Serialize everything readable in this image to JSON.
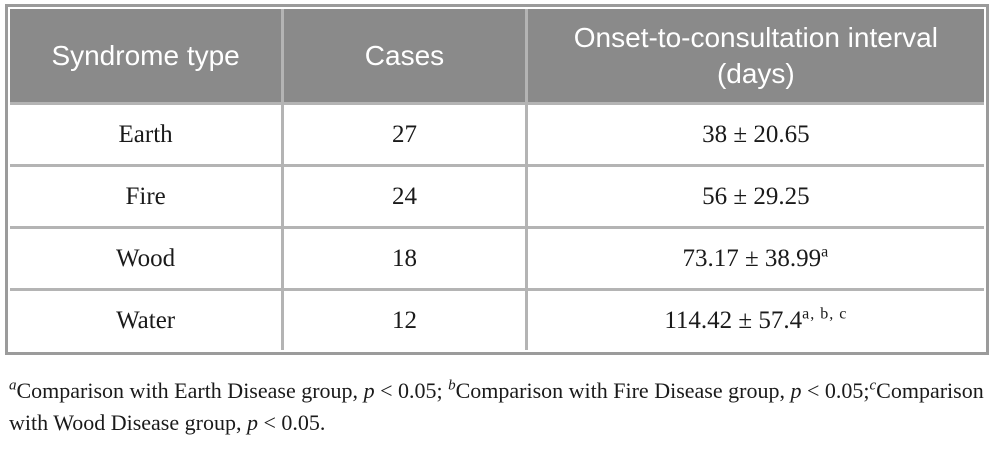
{
  "theme": {
    "header_bg": "#8a8a8a",
    "header_text": "#ffffff",
    "outer_border": "#9b9b9b",
    "grid_line": "#b4b4b4",
    "body_text": "#1a1a1a",
    "page_bg": "#ffffff"
  },
  "table": {
    "columns": [
      "Syndrome type",
      "Cases",
      "Onset-to-consultation interval (days)"
    ],
    "rows": [
      {
        "syndrome": "Earth",
        "cases": "27",
        "interval": "38 ± 20.65",
        "sup": ""
      },
      {
        "syndrome": "Fire",
        "cases": "24",
        "interval": "56 ± 29.25",
        "sup": ""
      },
      {
        "syndrome": "Wood",
        "cases": "18",
        "interval": "73.17 ± 38.99",
        "sup": "a"
      },
      {
        "syndrome": "Water",
        "cases": "12",
        "interval": "114.42 ± 57.4",
        "sup": "a, b, c"
      }
    ]
  },
  "footnotes": [
    {
      "marker": "a",
      "text": "Comparison with Earth Disease group, ",
      "p": "p",
      "after": " < 0.05; "
    },
    {
      "marker": "b",
      "text": "Comparison with Fire Disease group, ",
      "p": "p",
      "after": " < 0.05;"
    },
    {
      "marker": "c",
      "text": "Comparison with Wood Disease group, ",
      "p": "p",
      "after": " < 0.05."
    }
  ]
}
